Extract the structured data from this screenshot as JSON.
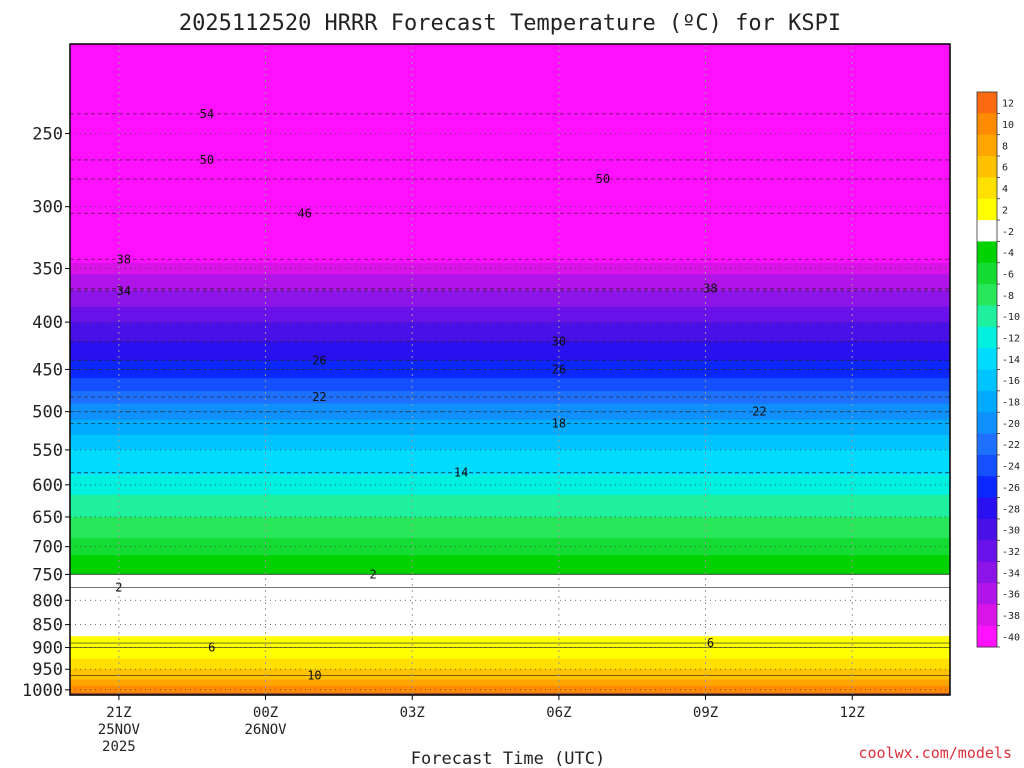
{
  "title": "2025112520 HRRR Forecast Temperature (ºC) for KSPI",
  "credit": "coolwx.com/models",
  "chart_data": {
    "type": "heatmap",
    "title": "2025112520 HRRR Forecast Temperature (ºC) for KSPI",
    "xlabel": "Forecast Time (UTC)",
    "ylabel": "",
    "x_ticks": [
      {
        "hour": 21,
        "lines": [
          "21Z",
          "25NOV",
          "2025"
        ]
      },
      {
        "hour": 24,
        "lines": [
          "00Z",
          "26NOV"
        ]
      },
      {
        "hour": 27,
        "lines": [
          "03Z"
        ]
      },
      {
        "hour": 30,
        "lines": [
          "06Z"
        ]
      },
      {
        "hour": 33,
        "lines": [
          "09Z"
        ]
      },
      {
        "hour": 36,
        "lines": [
          "12Z"
        ]
      }
    ],
    "xlim": [
      20,
      38
    ],
    "ylim": [
      1013,
      200
    ],
    "y_scale": "log",
    "y_ticks": [
      250,
      300,
      350,
      400,
      450,
      500,
      550,
      600,
      650,
      700,
      750,
      800,
      850,
      900,
      950,
      1000
    ],
    "grid": true,
    "colorbar_ticks": [
      "12",
      "10",
      "8",
      "6",
      "4",
      "2",
      "-2",
      "-4",
      "-6",
      "-8",
      "-10",
      "-12",
      "-14",
      "-16",
      "-18",
      "-20",
      "-22",
      "-24",
      "-26",
      "-28",
      "-30",
      "-32",
      "-34",
      "-36",
      "-38",
      "-40"
    ],
    "colorbar_colors": [
      "#fb6a10",
      "#ff8c00",
      "#ffa500",
      "#ffc200",
      "#ffe000",
      "#ffff00",
      "#ffffff",
      "#00d200",
      "#14dc32",
      "#28e65a",
      "#1ef0a0",
      "#00f0e0",
      "#00dcff",
      "#00c4ff",
      "#00aaff",
      "#0e90ff",
      "#1e70ff",
      "#1450ff",
      "#0a28ff",
      "#2a10f0",
      "#4a10e8",
      "#6a10e8",
      "#8c14e8",
      "#b014e8",
      "#d814e8",
      "#ff10ff"
    ],
    "soil_color": "#a0522d",
    "sounding": [
      {
        "p": 1000,
        "t": 11
      },
      {
        "p": 975,
        "t": 8
      },
      {
        "p": 950,
        "t": 6
      },
      {
        "p": 925,
        "t": 4
      },
      {
        "p": 900,
        "t": 3
      },
      {
        "p": 850,
        "t": 1
      },
      {
        "p": 800,
        "t": -1
      },
      {
        "p": 750,
        "t": -2
      },
      {
        "p": 700,
        "t": -5
      },
      {
        "p": 650,
        "t": -8
      },
      {
        "p": 600,
        "t": -11
      },
      {
        "p": 550,
        "t": -14
      },
      {
        "p": 500,
        "t": -19
      },
      {
        "p": 450,
        "t": -25
      },
      {
        "p": 400,
        "t": -30
      },
      {
        "p": 350,
        "t": -37
      },
      {
        "p": 300,
        "t": -45
      },
      {
        "p": 250,
        "t": -51
      }
    ],
    "contour_labels": [
      {
        "text": "54",
        "x": 22.8,
        "p": 238
      },
      {
        "text": "50",
        "x": 22.8,
        "p": 267
      },
      {
        "text": "50",
        "x": 30.9,
        "p": 280
      },
      {
        "text": "46",
        "x": 24.8,
        "p": 305
      },
      {
        "text": "38",
        "x": 21.1,
        "p": 342
      },
      {
        "text": "38",
        "x": 33.1,
        "p": 368
      },
      {
        "text": "34",
        "x": 21.1,
        "p": 370
      },
      {
        "text": "30",
        "x": 30.0,
        "p": 420
      },
      {
        "text": "26",
        "x": 25.1,
        "p": 440
      },
      {
        "text": "26",
        "x": 30.0,
        "p": 450
      },
      {
        "text": "22",
        "x": 25.1,
        "p": 482
      },
      {
        "text": "22",
        "x": 34.1,
        "p": 500
      },
      {
        "text": "18",
        "x": 30.0,
        "p": 515
      },
      {
        "text": "14",
        "x": 28.0,
        "p": 582
      },
      {
        "text": "2",
        "x": 26.2,
        "p": 750
      },
      {
        "text": "2",
        "x": 21.0,
        "p": 775
      },
      {
        "text": "6",
        "x": 22.9,
        "p": 900
      },
      {
        "text": "6",
        "x": 33.1,
        "p": 890
      },
      {
        "text": "10",
        "x": 25.0,
        "p": 965
      }
    ]
  }
}
